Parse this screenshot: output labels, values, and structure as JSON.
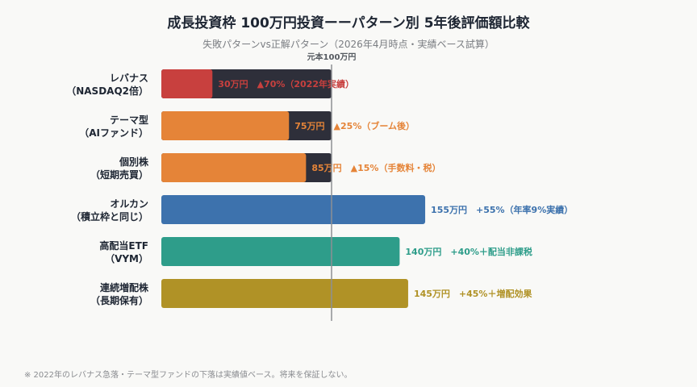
{
  "title": "成長投資枠 100万円投資ーーパターン別 5年後評価額比較",
  "subtitle": "失敗パターンvs正解パターン（2026年4月時点・実績ベース試算）",
  "footnote": "※ 2022年のレバナス急落・テーマ型ファンドの下落は実績値ベース。将来を保証しない。",
  "chart_data": {
    "type": "bar",
    "orientation": "horizontal",
    "reference_line": {
      "value": 100,
      "label": "元本100万円"
    },
    "xlim": [
      0,
      200
    ],
    "track_color": "#2e2f3a",
    "categories": [
      [
        "レバナス",
        "（NASDAQ2倍）"
      ],
      [
        "テーマ型",
        "（AIファンド）"
      ],
      [
        "個別株",
        "（短期売買）"
      ],
      [
        "オルカン",
        "（積立枠と同じ）"
      ],
      [
        "高配当ETF",
        "（VYM）"
      ],
      [
        "連続増配株",
        "（長期保有）"
      ]
    ],
    "values": [
      30,
      75,
      85,
      155,
      140,
      145
    ],
    "labels": [
      "30万円　▲70%（2022年実績）",
      "75万円　▲25%（ブーム後）",
      "85万円　▲15%（手数料・税）",
      "155万円　+55%（年率9%実績）",
      "140万円　+40%＋配当非課税",
      "145万円　+45%＋増配効果"
    ],
    "colors": [
      "#c8403e",
      "#e58438",
      "#e58438",
      "#3d72ad",
      "#2e9d8a",
      "#b09226"
    ]
  }
}
